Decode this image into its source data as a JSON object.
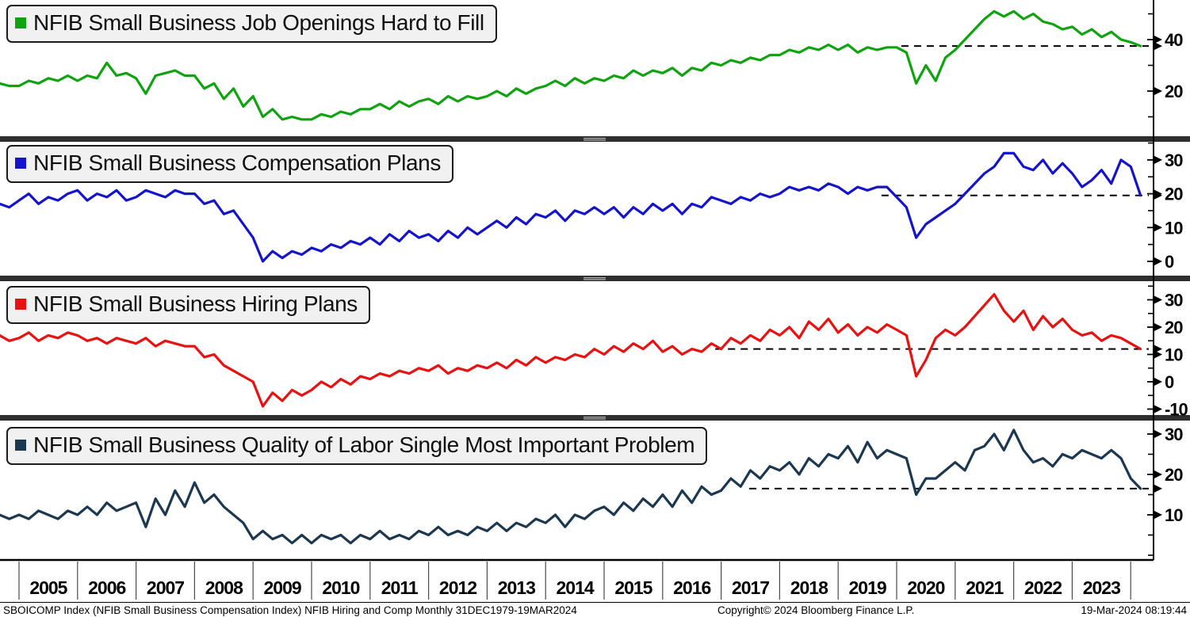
{
  "chart_data": [
    {
      "type": "line",
      "title": "NFIB Small Business Job Openings Hard to Fill",
      "color": "#0fa30f",
      "y_ticks_labeled": [
        20,
        40
      ],
      "y_ticks_minor": [
        10,
        30,
        50
      ],
      "last_value": 37.5,
      "last_value_line_start_year": 2020.08,
      "x_start_year": 2004.667,
      "x_step_years": 0.16667,
      "values": [
        23,
        22,
        22,
        24,
        23,
        25,
        24,
        26,
        24,
        26,
        25,
        31,
        26,
        27,
        25,
        19,
        26,
        27,
        28,
        26,
        26,
        21,
        23,
        17,
        21,
        14,
        18,
        10,
        13,
        9,
        10,
        9,
        9,
        11,
        10,
        12,
        11,
        13,
        13,
        15,
        13,
        16,
        14,
        16,
        17,
        15,
        18,
        16,
        18,
        17,
        18,
        20,
        18,
        21,
        19,
        21,
        22,
        24,
        22,
        25,
        23,
        25,
        24,
        26,
        25,
        28,
        26,
        28,
        27,
        29,
        26,
        29,
        28,
        31,
        30,
        32,
        31,
        33,
        32,
        34,
        34,
        36,
        35,
        37,
        36,
        38,
        36,
        38,
        35,
        37,
        36,
        37,
        37,
        35,
        23,
        30,
        24,
        33,
        36,
        40,
        44,
        48,
        51,
        49,
        51,
        48,
        50,
        47,
        46,
        44,
        45,
        42,
        44,
        41,
        43,
        40,
        39,
        37.5
      ]
    },
    {
      "type": "line",
      "title": "NFIB Small Business Compensation Plans",
      "color": "#1414cc",
      "y_ticks_labeled": [
        0,
        10,
        20,
        30
      ],
      "y_ticks_minor": [
        5,
        15,
        25,
        35
      ],
      "last_value": 19.5,
      "last_value_line_start_year": 2019.74,
      "x_start_year": 2004.667,
      "x_step_years": 0.16667,
      "values": [
        17,
        16,
        18,
        20,
        17,
        19,
        18,
        20,
        21,
        18,
        20,
        19,
        21,
        18,
        19,
        21,
        20,
        19,
        21,
        20,
        20,
        17,
        18,
        14,
        15,
        11,
        7,
        0,
        3,
        1,
        3,
        2,
        4,
        3,
        5,
        4,
        6,
        5,
        7,
        5,
        8,
        6,
        9,
        7,
        8,
        6,
        9,
        7,
        10,
        8,
        10,
        12,
        10,
        13,
        11,
        14,
        13,
        15,
        12,
        15,
        14,
        16,
        14,
        16,
        13,
        16,
        14,
        17,
        15,
        17,
        14,
        17,
        16,
        19,
        18,
        17,
        19,
        18,
        20,
        19,
        20,
        22,
        21,
        22,
        21,
        23,
        22,
        20,
        22,
        21,
        22,
        22,
        19,
        16,
        7,
        11,
        13,
        15,
        17,
        20,
        23,
        26,
        28,
        32,
        32,
        28,
        27,
        30,
        26,
        29,
        26,
        22,
        24,
        27,
        23,
        30,
        28,
        19.5
      ]
    },
    {
      "type": "line",
      "title": "NFIB Small Business Hiring Plans",
      "color": "#e81212",
      "y_ticks_labeled": [
        -10,
        0,
        10,
        20,
        30
      ],
      "y_ticks_minor": [
        -5,
        5,
        15,
        25,
        35
      ],
      "last_value": 12,
      "last_value_line_start_year": 2016.9,
      "x_start_year": 2004.667,
      "x_step_years": 0.16667,
      "values": [
        17,
        15,
        16,
        18,
        15,
        17,
        16,
        18,
        17,
        15,
        16,
        14,
        16,
        15,
        14,
        16,
        13,
        15,
        14,
        13,
        13,
        9,
        10,
        6,
        4,
        2,
        0,
        -9,
        -4,
        -7,
        -3,
        -5,
        -3,
        0,
        -2,
        1,
        -1,
        2,
        1,
        3,
        2,
        4,
        3,
        5,
        4,
        6,
        3,
        5,
        4,
        6,
        5,
        7,
        5,
        8,
        6,
        9,
        7,
        9,
        8,
        10,
        9,
        12,
        10,
        13,
        11,
        14,
        12,
        15,
        11,
        13,
        10,
        12,
        11,
        14,
        12,
        16,
        14,
        17,
        15,
        19,
        17,
        20,
        16,
        22,
        19,
        23,
        18,
        21,
        17,
        20,
        18,
        21,
        19,
        17,
        2,
        8,
        16,
        19,
        17,
        20,
        24,
        28,
        32,
        26,
        22,
        26,
        19,
        24,
        20,
        23,
        19,
        17,
        18,
        15,
        17,
        16,
        14,
        12
      ]
    },
    {
      "type": "line",
      "title": "NFIB Small Business Quality of Labor Single Most Important Problem",
      "color": "#1c3850",
      "y_ticks_labeled": [
        10,
        20,
        30
      ],
      "y_ticks_minor": [
        0,
        5,
        15,
        25
      ],
      "last_value": 16.5,
      "last_value_line_start_year": 2017.48,
      "x_start_year": 2004.667,
      "x_step_years": 0.16667,
      "values": [
        10,
        9,
        10,
        9,
        11,
        10,
        9,
        11,
        10,
        12,
        10,
        13,
        11,
        12,
        13,
        7,
        14,
        10,
        16,
        12,
        18,
        13,
        15,
        12,
        10,
        8,
        4,
        6,
        4,
        5,
        3,
        5,
        3,
        5,
        4,
        5,
        3,
        5,
        4,
        6,
        4,
        5,
        4,
        6,
        5,
        7,
        5,
        6,
        5,
        7,
        6,
        8,
        6,
        8,
        7,
        9,
        8,
        10,
        7,
        10,
        9,
        11,
        12,
        10,
        13,
        11,
        14,
        12,
        15,
        12,
        16,
        13,
        17,
        15,
        16,
        19,
        17,
        21,
        19,
        22,
        21,
        23,
        20,
        24,
        22,
        25,
        24,
        27,
        23,
        28,
        24,
        26,
        25,
        24,
        15,
        19,
        19,
        21,
        23,
        21,
        26,
        27,
        30,
        26,
        31,
        26,
        23,
        24,
        22,
        25,
        24,
        26,
        25,
        24,
        26,
        24,
        19,
        16.5
      ]
    }
  ],
  "x_axis": {
    "years": [
      "2005",
      "2006",
      "2007",
      "2008",
      "2009",
      "2010",
      "2011",
      "2012",
      "2013",
      "2014",
      "2015",
      "2016",
      "2017",
      "2018",
      "2019",
      "2020",
      "2021",
      "2022",
      "2023"
    ]
  },
  "footer": {
    "left": "SBOICOMP Index (NFIB Small Business Compensation Index) NFIB Hiring and Comp  Monthly 31DEC1979-19MAR2024",
    "center": "Copyright© 2024 Bloomberg Finance L.P.",
    "right": "19-Mar-2024 08:19:44"
  }
}
